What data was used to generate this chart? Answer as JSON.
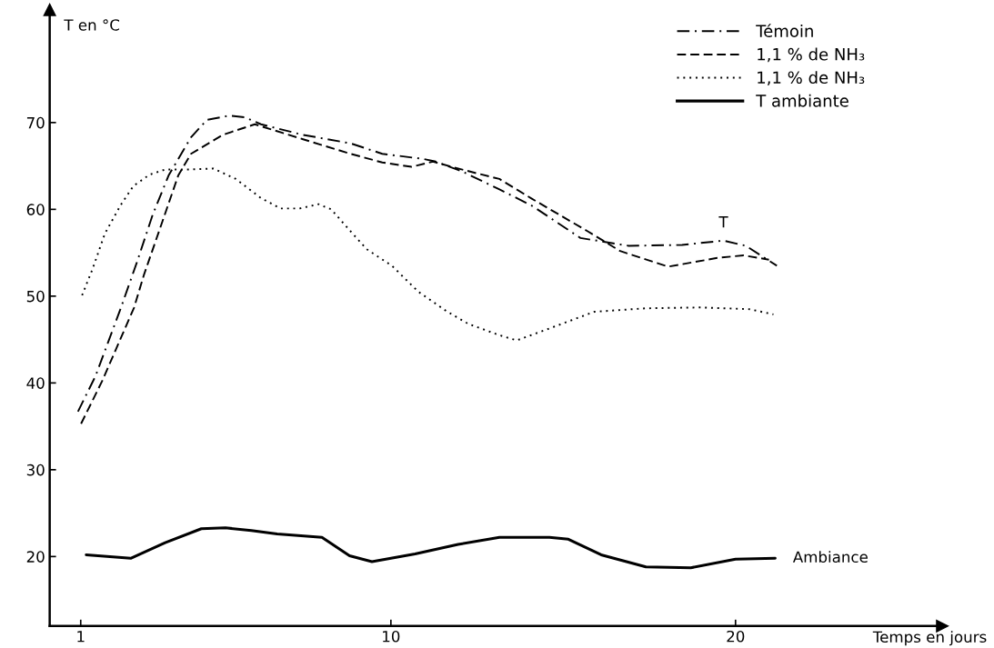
{
  "chart_data": {
    "type": "line",
    "xlabel": "Temps en jours",
    "ylabel": "T en °C",
    "xlim": [
      0.1,
      26
    ],
    "ylim": [
      12,
      83
    ],
    "xticks": [
      1,
      10,
      20
    ],
    "yticks": [
      20,
      30,
      40,
      50,
      60,
      70
    ],
    "grid": false,
    "legend": "top right",
    "marker": "none",
    "series": [
      {
        "name": "Témoin",
        "color": "#000000",
        "line_style": "dashdot",
        "x": [
          0.92,
          1.43,
          2.17,
          2.63,
          3.09,
          3.55,
          4.2,
          4.66,
          5.31,
          5.77,
          6.23,
          7.43,
          8.83,
          9.75,
          10.95,
          11.3,
          12.05,
          13.15,
          14.1,
          15.5,
          16.9,
          18.45,
          19.65,
          20.3,
          21.2
        ],
        "values": [
          36.7,
          40.8,
          48.7,
          53.9,
          59.4,
          63.9,
          68.3,
          70.3,
          70.8,
          70.6,
          69.8,
          68.6,
          67.6,
          66.4,
          65.8,
          65.5,
          64.4,
          62.3,
          60.4,
          56.7,
          55.8,
          55.9,
          56.4,
          55.8,
          53.5
        ]
      },
      {
        "name": "1,1 % de NH₃",
        "color": "#000000",
        "line_style": "dashed",
        "x": [
          1.01,
          1.62,
          2.55,
          2.83,
          3.37,
          3.83,
          4.2,
          5.13,
          6.05,
          7.43,
          8.83,
          9.75,
          10.6,
          11.22,
          12.05,
          13.15,
          14.1,
          15.7,
          16.65,
          18.05,
          19.47,
          20.23,
          20.97
        ],
        "values": [
          35.3,
          40.2,
          48.7,
          52.4,
          58.6,
          63.9,
          66.4,
          68.6,
          69.8,
          68.1,
          66.4,
          65.4,
          64.9,
          65.5,
          64.6,
          63.5,
          61.2,
          57.5,
          55.2,
          53.4,
          54.4,
          54.7,
          54.2
        ]
      },
      {
        "name": "1,1 % de NH₃",
        "color": "#000000",
        "line_style": "dotted",
        "x": [
          1.04,
          1.35,
          1.7,
          2.16,
          2.53,
          3.0,
          3.46,
          4.2,
          4.85,
          5.5,
          6.23,
          6.8,
          7.35,
          7.9,
          8.27,
          8.8,
          9.3,
          10.03,
          10.8,
          11.6,
          12.25,
          13.15,
          13.65,
          14.75,
          15.9,
          17.4,
          19.0,
          20.4,
          21.1
        ],
        "values": [
          50.1,
          53.2,
          57.2,
          60.5,
          62.7,
          64.0,
          64.6,
          64.6,
          64.7,
          63.5,
          61.3,
          60.1,
          60.1,
          60.6,
          60.0,
          57.6,
          55.4,
          53.5,
          50.5,
          48.3,
          46.8,
          45.5,
          44.9,
          46.5,
          48.2,
          48.6,
          48.7,
          48.5,
          47.9
        ]
      },
      {
        "name": "T ambiante",
        "color": "#000000",
        "line_style": "solid",
        "x": [
          1.16,
          2.45,
          3.45,
          4.5,
          5.2,
          5.95,
          6.7,
          8.0,
          8.8,
          9.45,
          10.7,
          11.95,
          13.15,
          14.6,
          15.15,
          16.1,
          17.4,
          18.7,
          20.0,
          21.15
        ],
        "values": [
          20.2,
          19.8,
          21.6,
          23.2,
          23.3,
          23.0,
          22.6,
          22.2,
          20.1,
          19.4,
          20.3,
          21.4,
          22.2,
          22.2,
          22.0,
          20.2,
          18.8,
          18.7,
          19.7,
          19.8
        ]
      }
    ],
    "annotations": [
      {
        "text": "T",
        "x": 19.65,
        "y": 56.4
      },
      {
        "text": "Ambiance",
        "x": 21.15,
        "y": 19.8
      }
    ]
  }
}
